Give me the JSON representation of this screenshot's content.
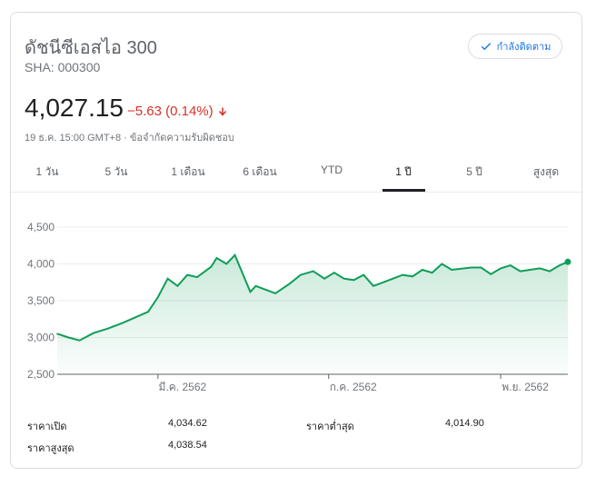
{
  "header": {
    "title": "ดัชนีซีเอสไอ 300",
    "ticker": "SHA: 000300",
    "follow_label": "กำลังติดตาม",
    "follow_icon": "check-icon"
  },
  "quote": {
    "price": "4,027.15",
    "change": "−5.63 (0.14%)",
    "change_icon": "arrow-down-icon",
    "change_color": "#d93025",
    "timestamp": "19 ธ.ค. 15:00 GMT+8 · ข้อจำกัดความรับผิดชอบ"
  },
  "tabs": [
    {
      "label": "1 วัน"
    },
    {
      "label": "5 วัน"
    },
    {
      "label": "1 เดือน"
    },
    {
      "label": "6 เดือน"
    },
    {
      "label": "YTD"
    },
    {
      "label": "1 ปี",
      "active": true
    },
    {
      "label": "5 ปี"
    },
    {
      "label": "สูงสุด"
    }
  ],
  "chart_data": {
    "type": "area",
    "line_color": "#0f9d58",
    "x": [
      "2018-12-19",
      "2018-12-27",
      "2019-01-04",
      "2019-01-14",
      "2019-01-24",
      "2019-02-04",
      "2019-02-22",
      "2019-03-01",
      "2019-03-08",
      "2019-03-15",
      "2019-03-22",
      "2019-03-29",
      "2019-04-08",
      "2019-04-12",
      "2019-04-19",
      "2019-04-25",
      "2019-05-06",
      "2019-05-10",
      "2019-05-17",
      "2019-05-24",
      "2019-06-03",
      "2019-06-11",
      "2019-06-20",
      "2019-06-28",
      "2019-07-05",
      "2019-07-12",
      "2019-07-19",
      "2019-07-26",
      "2019-08-02",
      "2019-08-09",
      "2019-08-16",
      "2019-08-23",
      "2019-08-30",
      "2019-09-06",
      "2019-09-13",
      "2019-09-20",
      "2019-09-27",
      "2019-10-11",
      "2019-10-18",
      "2019-10-25",
      "2019-11-01",
      "2019-11-08",
      "2019-11-15",
      "2019-11-22",
      "2019-11-29",
      "2019-12-06",
      "2019-12-13",
      "2019-12-19"
    ],
    "values": [
      3050,
      3000,
      2960,
      3060,
      3120,
      3200,
      3350,
      3550,
      3800,
      3700,
      3850,
      3820,
      3960,
      4080,
      4000,
      4120,
      3620,
      3700,
      3650,
      3600,
      3730,
      3850,
      3900,
      3800,
      3880,
      3800,
      3780,
      3850,
      3700,
      3750,
      3800,
      3850,
      3830,
      3920,
      3880,
      4000,
      3920,
      3950,
      3950,
      3860,
      3940,
      3980,
      3900,
      3920,
      3940,
      3900,
      3980,
      4027.15
    ],
    "xticks": [
      "มี.ค. 2562",
      "ก.ค. 2562",
      "พ.ย. 2562"
    ],
    "yticks": [
      2500,
      3000,
      3500,
      4000,
      4500
    ],
    "ytick_labels": [
      "2,500",
      "3,000",
      "3,500",
      "4,000",
      "4,500"
    ],
    "ylim": [
      2500,
      4500
    ],
    "grid": true
  },
  "stats": [
    {
      "label": "ราคาเปิด",
      "value": "4,034.62"
    },
    {
      "label": "ราคาต่ำสุด",
      "value": "4,014.90"
    },
    {
      "label": "ราคาสูงสุด",
      "value": "4,038.54"
    }
  ]
}
